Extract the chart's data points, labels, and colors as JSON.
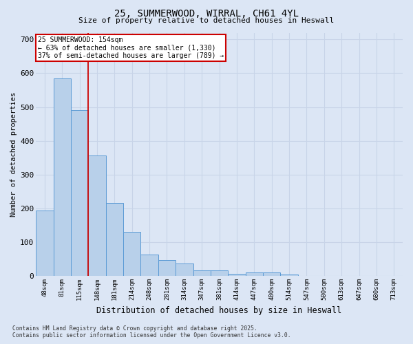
{
  "title1": "25, SUMMERWOOD, WIRRAL, CH61 4YL",
  "title2": "Size of property relative to detached houses in Heswall",
  "xlabel": "Distribution of detached houses by size in Heswall",
  "ylabel": "Number of detached properties",
  "categories": [
    "48sqm",
    "81sqm",
    "115sqm",
    "148sqm",
    "181sqm",
    "214sqm",
    "248sqm",
    "281sqm",
    "314sqm",
    "347sqm",
    "381sqm",
    "414sqm",
    "447sqm",
    "480sqm",
    "514sqm",
    "547sqm",
    "580sqm",
    "613sqm",
    "647sqm",
    "680sqm",
    "713sqm"
  ],
  "values": [
    193,
    585,
    490,
    357,
    217,
    130,
    63,
    47,
    36,
    17,
    16,
    6,
    10,
    10,
    5,
    0,
    0,
    0,
    0,
    0,
    0
  ],
  "bar_color": "#b8d0ea",
  "bar_edge_color": "#5b9bd5",
  "grid_color": "#c8d4e8",
  "bg_color": "#dce6f5",
  "vline_color": "#cc0000",
  "vline_pos": 2.5,
  "annotation_line1": "25 SUMMERWOOD: 154sqm",
  "annotation_line2": "← 63% of detached houses are smaller (1,330)",
  "annotation_line3": "37% of semi-detached houses are larger (789) →",
  "annotation_box_color": "#cc0000",
  "footer1": "Contains HM Land Registry data © Crown copyright and database right 2025.",
  "footer2": "Contains public sector information licensed under the Open Government Licence v3.0.",
  "ylim": [
    0,
    720
  ],
  "yticks": [
    0,
    100,
    200,
    300,
    400,
    500,
    600,
    700
  ]
}
